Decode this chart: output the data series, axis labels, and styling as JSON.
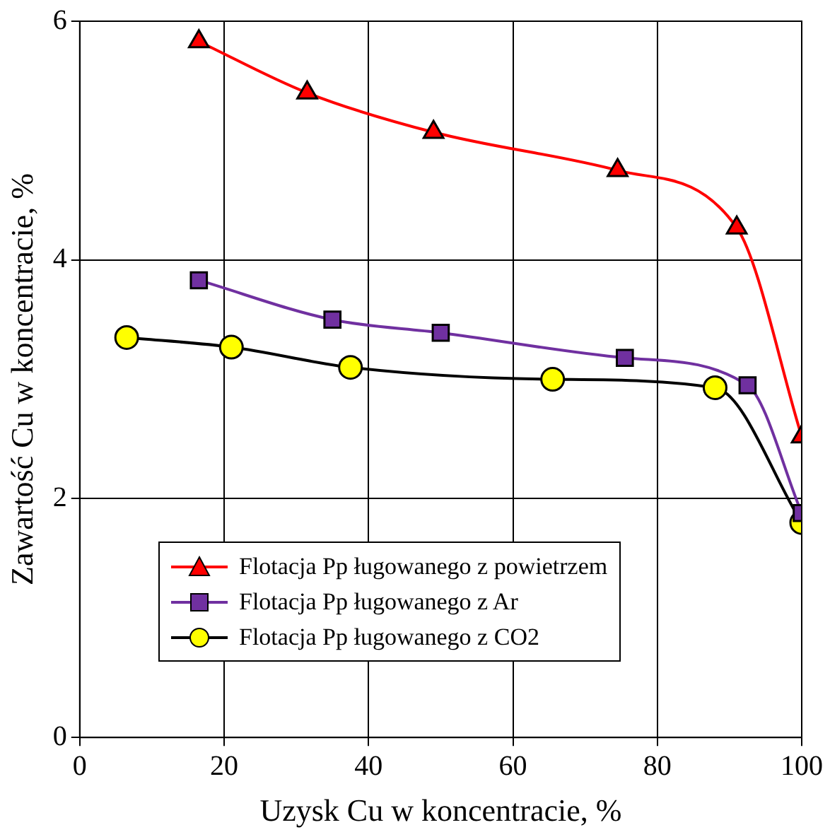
{
  "chart_data": {
    "type": "line",
    "xlabel": "Uzysk Cu w koncentracie, %",
    "ylabel": "Zawartość Cu w koncentracie, %",
    "xlim": [
      0,
      100
    ],
    "xticks": [
      0,
      20,
      40,
      60,
      80,
      100
    ],
    "ylim": [
      0,
      6
    ],
    "yticks": [
      0,
      2,
      4,
      6
    ],
    "grid": true,
    "legend": "bottom",
    "line_style": "solid",
    "series": [
      {
        "name": "Flotacja Pp ługowanego z powietrzem",
        "color": "#ff0000",
        "marker": "triangle",
        "colors": [
          "#ff0000",
          "#ff0000",
          "#ff0000",
          "#ff0000",
          "#ff0000",
          "#ff0000"
        ],
        "x": [
          16.5,
          31.5,
          49,
          74.5,
          91,
          100
        ],
        "values": [
          5.83,
          5.4,
          5.07,
          4.75,
          4.27,
          2.52
        ]
      },
      {
        "name": "Flotacja Pp ługowanego z Ar",
        "color": "#7030a0",
        "marker": "square",
        "colors": [
          "#7030a0",
          "#7030a0",
          "#7030a0",
          "#7030a0",
          "#7030a0",
          "#7030a0"
        ],
        "x": [
          16.5,
          35,
          50,
          75.5,
          92.5,
          100
        ],
        "values": [
          3.83,
          3.5,
          3.39,
          3.18,
          2.95,
          1.88
        ]
      },
      {
        "name": "Flotacja Pp ługowanego z CO2",
        "color": "#000000",
        "marker": "circle",
        "colors": [
          "#ffff00",
          "#ffff00",
          "#ffff00",
          "#ffff00",
          "#ffff00",
          "#ffff00"
        ],
        "x": [
          6.5,
          21,
          37.5,
          65.5,
          88,
          100
        ],
        "values": [
          3.35,
          3.27,
          3.1,
          3.0,
          2.93,
          1.8
        ]
      }
    ]
  }
}
